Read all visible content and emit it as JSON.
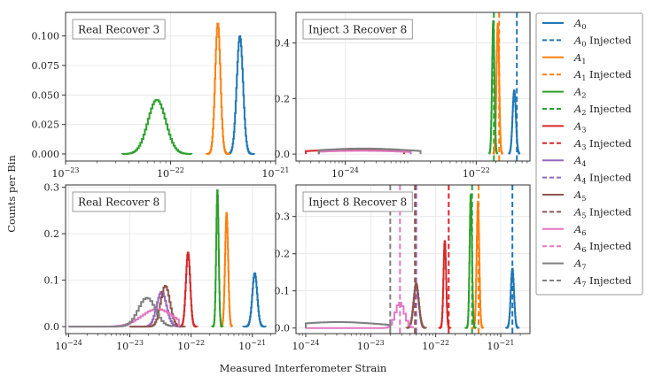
{
  "figure": {
    "xlabel": "Measured Interferometer Strain",
    "ylabel": "Counts per Bin"
  },
  "legend": [
    {
      "base": "A",
      "sub": "0",
      "suffix": "",
      "color": "#1f77b4",
      "dash": false
    },
    {
      "base": "A",
      "sub": "0",
      "suffix": " Injected",
      "color": "#1f77b4",
      "dash": true
    },
    {
      "base": "A",
      "sub": "1",
      "suffix": "",
      "color": "#ff7f0e",
      "dash": false
    },
    {
      "base": "A",
      "sub": "1",
      "suffix": " Injected",
      "color": "#ff7f0e",
      "dash": true
    },
    {
      "base": "A",
      "sub": "2",
      "suffix": "",
      "color": "#2ca02c",
      "dash": false
    },
    {
      "base": "A",
      "sub": "2",
      "suffix": " Injected",
      "color": "#2ca02c",
      "dash": true
    },
    {
      "base": "A",
      "sub": "3",
      "suffix": "",
      "color": "#d62728",
      "dash": false
    },
    {
      "base": "A",
      "sub": "3",
      "suffix": " Injected",
      "color": "#d62728",
      "dash": true
    },
    {
      "base": "A",
      "sub": "4",
      "suffix": "",
      "color": "#9467bd",
      "dash": false
    },
    {
      "base": "A",
      "sub": "4",
      "suffix": " Injected",
      "color": "#9467bd",
      "dash": true
    },
    {
      "base": "A",
      "sub": "5",
      "suffix": "",
      "color": "#8c564b",
      "dash": false
    },
    {
      "base": "A",
      "sub": "5",
      "suffix": " Injected",
      "color": "#8c564b",
      "dash": true
    },
    {
      "base": "A",
      "sub": "6",
      "suffix": "",
      "color": "#e377c2",
      "dash": false
    },
    {
      "base": "A",
      "sub": "6",
      "suffix": " Injected",
      "color": "#e377c2",
      "dash": true
    },
    {
      "base": "A",
      "sub": "7",
      "suffix": "",
      "color": "#7f7f7f",
      "dash": false
    },
    {
      "base": "A",
      "sub": "7",
      "suffix": " Injected",
      "color": "#7f7f7f",
      "dash": true
    }
  ],
  "chart_data": [
    {
      "type": "line",
      "title": "Real Recover 3",
      "xscale": "log",
      "xlim": [
        -23,
        -21
      ],
      "ylim": [
        -0.006,
        0.12
      ],
      "xticks": [
        -23,
        -22,
        -21
      ],
      "yticks": [
        0.0,
        0.025,
        0.05,
        0.075,
        0.1
      ],
      "ytick_labels": [
        "0.000",
        "0.025",
        "0.050",
        "0.075",
        "0.100"
      ],
      "series": [
        {
          "name": "A_0",
          "color": "#1f77b4",
          "center": -21.34,
          "width": 0.03,
          "peak": 0.1,
          "lo": -21.46,
          "hi": -21.2
        },
        {
          "name": "A_1",
          "color": "#ff7f0e",
          "center": -21.55,
          "width": 0.025,
          "peak": 0.111,
          "lo": -21.66,
          "hi": -21.44
        },
        {
          "name": "A_2",
          "color": "#2ca02c",
          "center": -22.13,
          "width": 0.085,
          "peak": 0.046,
          "lo": -22.46,
          "hi": -21.8
        }
      ],
      "injections": []
    },
    {
      "type": "line",
      "title": "Inject 3 Recover 8",
      "xscale": "log",
      "xlim": [
        -24.75,
        -21.18
      ],
      "ylim": [
        -0.025,
        0.51
      ],
      "xticks": [
        -24,
        -22
      ],
      "yticks": [
        0.0,
        0.2,
        0.4
      ],
      "ytick_labels": [
        "0.0",
        "0.2",
        "0.4"
      ],
      "series": [
        {
          "name": "A_0",
          "color": "#1f77b4",
          "center": -21.42,
          "width": 0.025,
          "peak": 0.23,
          "lo": -21.5,
          "hi": -21.34
        },
        {
          "name": "A_1",
          "color": "#ff7f0e",
          "center": -21.67,
          "width": 0.02,
          "peak": 0.47,
          "lo": -21.74,
          "hi": -21.6
        },
        {
          "name": "A_2",
          "color": "#2ca02c",
          "center": -21.74,
          "width": 0.018,
          "peak": 0.48,
          "lo": -21.8,
          "hi": -21.68
        },
        {
          "name": "A_3",
          "color": "#d62728",
          "center": -23.8,
          "width": 0.9,
          "peak": 0.016,
          "lo": -24.6,
          "hi": -23.1
        },
        {
          "name": "A_4",
          "color": "#9467bd",
          "center": -23.75,
          "width": 0.8,
          "peak": 0.013,
          "lo": -24.4,
          "hi": -23.0
        },
        {
          "name": "A_5",
          "color": "#8c564b",
          "center": -23.78,
          "width": 0.8,
          "peak": 0.014,
          "lo": -24.4,
          "hi": -23.0
        },
        {
          "name": "A_6",
          "color": "#e377c2",
          "center": -23.76,
          "width": 0.8,
          "peak": 0.012,
          "lo": -24.4,
          "hi": -23.0
        },
        {
          "name": "A_7",
          "color": "#7f7f7f",
          "center": -23.72,
          "width": 0.8,
          "peak": 0.02,
          "lo": -24.4,
          "hi": -22.85
        }
      ],
      "injections": [
        {
          "name": "A_0 Injected",
          "color": "#1f77b4",
          "x": -21.38
        },
        {
          "name": "A_1 Injected",
          "color": "#ff7f0e",
          "x": -21.65
        },
        {
          "name": "A_2 Injected",
          "color": "#2ca02c",
          "x": -21.73
        }
      ]
    },
    {
      "type": "line",
      "title": "Real Recover 8",
      "xscale": "log",
      "xlim": [
        -24.05,
        -20.62
      ],
      "ylim": [
        -0.015,
        0.305
      ],
      "xticks": [
        -24,
        -23,
        -22,
        -21
      ],
      "yticks": [
        0.0,
        0.1,
        0.2,
        0.3
      ],
      "ytick_labels": [
        "0.0",
        "0.1",
        "0.2",
        "0.3"
      ],
      "series": [
        {
          "name": "A_0",
          "color": "#1f77b4",
          "center": -20.96,
          "width": 0.04,
          "peak": 0.115,
          "lo": -21.15,
          "hi": -20.78
        },
        {
          "name": "A_1",
          "color": "#ff7f0e",
          "center": -21.42,
          "width": 0.025,
          "peak": 0.245,
          "lo": -21.52,
          "hi": -21.33
        },
        {
          "name": "A_2",
          "color": "#2ca02c",
          "center": -21.57,
          "width": 0.02,
          "peak": 0.295,
          "lo": -21.66,
          "hi": -21.48
        },
        {
          "name": "A_3",
          "color": "#d62728",
          "center": -22.05,
          "width": 0.035,
          "peak": 0.16,
          "lo": -22.2,
          "hi": -21.9
        },
        {
          "name": "A_4",
          "color": "#9467bd",
          "center": -22.48,
          "width": 0.08,
          "peak": 0.075,
          "lo": -23.0,
          "hi": -22.15
        },
        {
          "name": "A_5",
          "color": "#8c564b",
          "center": -22.42,
          "width": 0.075,
          "peak": 0.088,
          "lo": -23.0,
          "hi": -22.1
        },
        {
          "name": "A_6",
          "color": "#e377c2",
          "center": -22.55,
          "width": 0.25,
          "peak": 0.038,
          "lo": -24.0,
          "hi": -22.2
        },
        {
          "name": "A_7",
          "color": "#7f7f7f",
          "center": -22.72,
          "width": 0.14,
          "peak": 0.062,
          "lo": -24.0,
          "hi": -22.3
        }
      ],
      "injections": []
    },
    {
      "type": "line",
      "title": "Inject 8 Recover 8",
      "xscale": "log",
      "xlim": [
        -24.15,
        -20.55
      ],
      "ylim": [
        -0.015,
        0.385
      ],
      "xticks": [
        -24,
        -23,
        -22,
        -21
      ],
      "yticks": [
        0.0,
        0.1,
        0.2,
        0.3
      ],
      "ytick_labels": [
        "0.0",
        "0.1",
        "0.2",
        "0.3"
      ],
      "series": [
        {
          "name": "A_0",
          "color": "#1f77b4",
          "center": -20.82,
          "width": 0.025,
          "peak": 0.16,
          "lo": -20.92,
          "hi": -20.72
        },
        {
          "name": "A_1",
          "color": "#ff7f0e",
          "center": -21.35,
          "width": 0.02,
          "peak": 0.34,
          "lo": -21.45,
          "hi": -21.27
        },
        {
          "name": "A_2",
          "color": "#2ca02c",
          "center": -21.46,
          "width": 0.018,
          "peak": 0.36,
          "lo": -21.55,
          "hi": -21.38
        },
        {
          "name": "A_3",
          "color": "#d62728",
          "center": -21.86,
          "width": 0.02,
          "peak": 0.235,
          "lo": -21.95,
          "hi": -21.77
        },
        {
          "name": "A_4",
          "color": "#9467bd",
          "center": -22.3,
          "width": 0.04,
          "peak": 0.11,
          "lo": -22.45,
          "hi": -22.15
        },
        {
          "name": "A_5",
          "color": "#8c564b",
          "center": -22.3,
          "width": 0.04,
          "peak": 0.12,
          "lo": -22.45,
          "hi": -22.15
        },
        {
          "name": "A_6",
          "color": "#e377c2",
          "center": -22.55,
          "width": 0.07,
          "peak": 0.068,
          "lo": -24.0,
          "hi": -22.35
        },
        {
          "name": "A_7",
          "color": "#7f7f7f",
          "center": -23.5,
          "width": 0.7,
          "peak": 0.016,
          "lo": -24.0,
          "hi": -22.7
        }
      ],
      "injections": [
        {
          "name": "A_0 Injected",
          "color": "#1f77b4",
          "x": -20.82
        },
        {
          "name": "A_1 Injected",
          "color": "#ff7f0e",
          "x": -21.34
        },
        {
          "name": "A_2 Injected",
          "color": "#2ca02c",
          "x": -21.44
        },
        {
          "name": "A_3 Injected",
          "color": "#d62728",
          "x": -21.8
        },
        {
          "name": "A_4 Injected",
          "color": "#9467bd",
          "x": -22.3
        },
        {
          "name": "A_5 Injected",
          "color": "#8c564b",
          "x": -22.32
        },
        {
          "name": "A_6 Injected",
          "color": "#e377c2",
          "x": -22.55
        },
        {
          "name": "A_7 Injected",
          "color": "#7f7f7f",
          "x": -22.7
        }
      ]
    }
  ]
}
